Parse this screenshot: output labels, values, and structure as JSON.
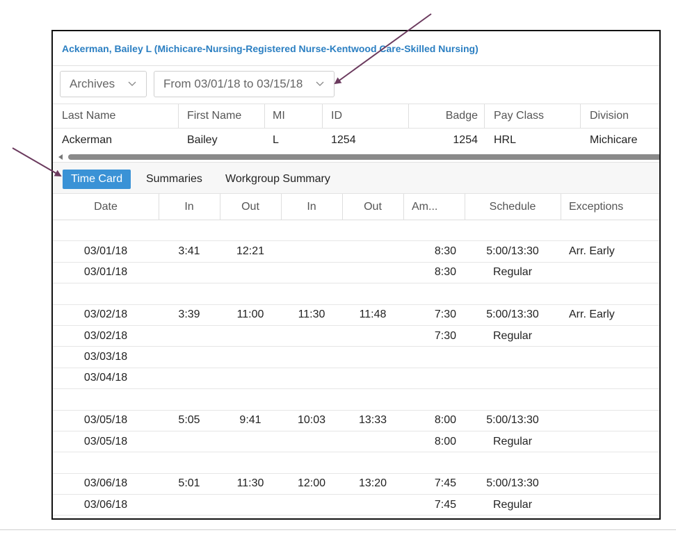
{
  "header": {
    "title": "Ackerman, Bailey L (Michicare-Nursing-Registered Nurse-Kentwood Care-Skilled Nursing)"
  },
  "filters": {
    "archives": "Archives",
    "date_range": "From 03/01/18 to 03/15/18"
  },
  "employee_grid": {
    "columns": [
      "Last Name",
      "First Name",
      "MI",
      "ID",
      "Badge",
      "Pay Class",
      "Division"
    ],
    "row": [
      "Ackerman",
      "Bailey",
      "L",
      "1254",
      "1254",
      "HRL",
      "Michicare"
    ]
  },
  "tabs": [
    "Time Card",
    "Summaries",
    "Workgroup Summary"
  ],
  "active_tab": "Time Card",
  "timecard": {
    "columns": [
      "Date",
      "In",
      "Out",
      "In",
      "Out",
      "Am...",
      "Schedule",
      "Exceptions"
    ],
    "rows": [
      [
        "",
        "",
        "",
        "",
        "",
        "",
        "",
        ""
      ],
      [
        "03/01/18",
        "3:41",
        "12:21",
        "",
        "",
        "8:30",
        "5:00/13:30",
        "Arr. Early"
      ],
      [
        "03/01/18",
        "",
        "",
        "",
        "",
        "8:30",
        "Regular",
        ""
      ],
      [
        "",
        "",
        "",
        "",
        "",
        "",
        "",
        ""
      ],
      [
        "03/02/18",
        "3:39",
        "11:00",
        "11:30",
        "11:48",
        "7:30",
        "5:00/13:30",
        "Arr. Early"
      ],
      [
        "03/02/18",
        "",
        "",
        "",
        "",
        "7:30",
        "Regular",
        ""
      ],
      [
        "03/03/18",
        "",
        "",
        "",
        "",
        "",
        "",
        ""
      ],
      [
        "03/04/18",
        "",
        "",
        "",
        "",
        "",
        "",
        ""
      ],
      [
        "",
        "",
        "",
        "",
        "",
        "",
        "",
        ""
      ],
      [
        "03/05/18",
        "5:05",
        "9:41",
        "10:03",
        "13:33",
        "8:00",
        "5:00/13:30",
        ""
      ],
      [
        "03/05/18",
        "",
        "",
        "",
        "",
        "8:00",
        "Regular",
        ""
      ],
      [
        "",
        "",
        "",
        "",
        "",
        "",
        "",
        ""
      ],
      [
        "03/06/18",
        "5:01",
        "11:30",
        "12:00",
        "13:20",
        "7:45",
        "5:00/13:30",
        ""
      ],
      [
        "03/06/18",
        "",
        "",
        "",
        "",
        "7:45",
        "Regular",
        ""
      ]
    ]
  },
  "colors": {
    "accent": "#3a92d6",
    "title_text": "#2b7fc2",
    "annotation_arrow": "#6b3a5e"
  }
}
